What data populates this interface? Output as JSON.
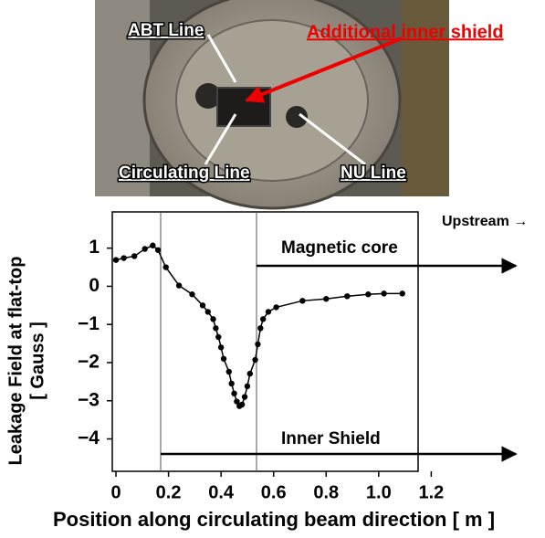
{
  "photo": {
    "labels": [
      "ABT Line",
      "Additional inner shield",
      "Circulating Line",
      "NU Line"
    ]
  },
  "chart_data": {
    "type": "line",
    "x": [
      0,
      0.03,
      0.07,
      0.11,
      0.14,
      0.16,
      0.19,
      0.24,
      0.29,
      0.33,
      0.35,
      0.37,
      0.38,
      0.39,
      0.4,
      0.41,
      0.43,
      0.44,
      0.45,
      0.46,
      0.47,
      0.48,
      0.49,
      0.5,
      0.51,
      0.53,
      0.54,
      0.55,
      0.56,
      0.58,
      0.61,
      0.71,
      0.8,
      0.88,
      0.96,
      1.02,
      1.09
    ],
    "values": [
      0.69,
      0.74,
      0.79,
      0.98,
      1.07,
      0.95,
      0.5,
      0.02,
      -0.21,
      -0.5,
      -0.67,
      -0.86,
      -1.1,
      -1.33,
      -1.6,
      -1.9,
      -2.24,
      -2.55,
      -2.81,
      -3.02,
      -3.14,
      -3.1,
      -2.9,
      -2.62,
      -2.29,
      -1.93,
      -1.52,
      -1.1,
      -0.86,
      -0.67,
      -0.55,
      -0.38,
      -0.33,
      -0.26,
      -0.21,
      -0.19,
      -0.19
    ],
    "color": "#000000",
    "xlim": [
      -0.014,
      1.15
    ],
    "ylim": [
      -4.85,
      1.95
    ],
    "xticks": [
      0,
      0.2,
      0.4,
      0.6,
      0.8,
      {
        "value": 1.0,
        "label": "1.0"
      },
      1.2
    ],
    "yticks": [
      1,
      0,
      {
        "value": -1,
        "label": "−1"
      },
      {
        "value": -2,
        "label": "−2"
      },
      {
        "value": -3,
        "label": "−3"
      },
      {
        "value": -4,
        "label": "−4"
      }
    ],
    "xlabel": "Position along circulating beam direction [ m ]",
    "ylabel": [
      "Leakage Field at flat-top",
      "[ Gauss ]"
    ],
    "annotations": [
      "Magnetic core",
      "Inner Shield",
      "Upstream →"
    ]
  }
}
